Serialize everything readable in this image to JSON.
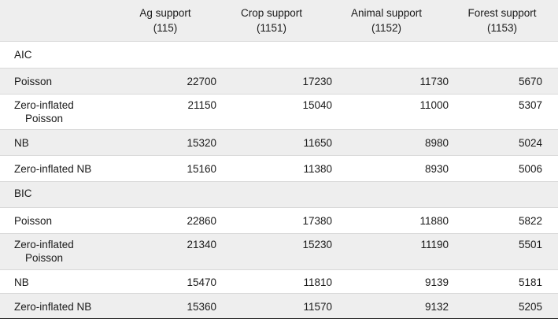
{
  "header": {
    "col1": {
      "name": "Ag support",
      "code": "(115)"
    },
    "col2": {
      "name": "Crop support",
      "code": "(1151)"
    },
    "col3": {
      "name": "Animal support",
      "code": "(1152)"
    },
    "col4": {
      "name": "Forest support",
      "code": "(1153)"
    }
  },
  "sections": {
    "aic": "AIC",
    "bic": "BIC"
  },
  "aic": {
    "poisson": {
      "label": "Poisson",
      "v1": "22700",
      "v2": "17230",
      "v3": "11730",
      "v4": "5670"
    },
    "zip": {
      "label1": "Zero-inflated",
      "label2": "Poisson",
      "v1": "21150",
      "v2": "15040",
      "v3": "11000",
      "v4": "5307"
    },
    "nb": {
      "label": "NB",
      "v1": "15320",
      "v2": "11650",
      "v3": "8980",
      "v4": "5024"
    },
    "zinb": {
      "label": "Zero-inflated NB",
      "v1": "15160",
      "v2": "11380",
      "v3": "8930",
      "v4": "5006"
    }
  },
  "bic": {
    "poisson": {
      "label": "Poisson",
      "v1": "22860",
      "v2": "17380",
      "v3": "11880",
      "v4": "5822"
    },
    "zip": {
      "label1": "Zero-inflated",
      "label2": "Poisson",
      "v1": "21340",
      "v2": "15230",
      "v3": "11190",
      "v4": "5501"
    },
    "nb": {
      "label": "NB",
      "v1": "15470",
      "v2": "11810",
      "v3": "9139",
      "v4": "5181"
    },
    "zinb": {
      "label": "Zero-inflated NB",
      "v1": "15360",
      "v2": "11570",
      "v3": "9132",
      "v4": "5205"
    }
  }
}
